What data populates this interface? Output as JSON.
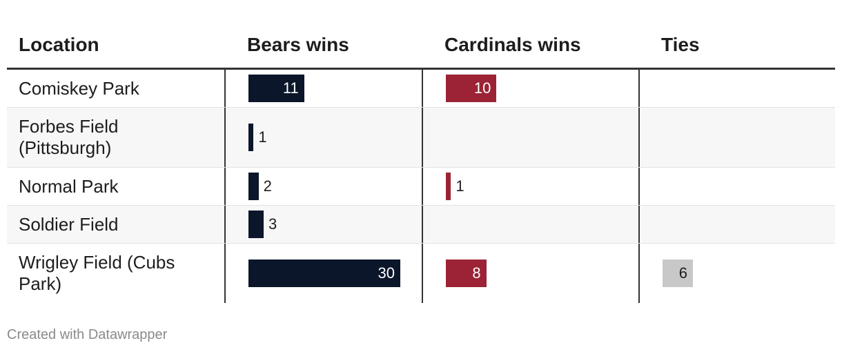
{
  "table": {
    "headers": [
      "Location",
      "Bears wins",
      "Cardinals wins",
      "Ties"
    ],
    "rows": [
      {
        "location": "Comiskey Park",
        "bears": 11,
        "cardinals": 10,
        "ties": null
      },
      {
        "location": "Forbes Field (Pittsburgh)",
        "bears": 1,
        "cardinals": null,
        "ties": null
      },
      {
        "location": "Normal Park",
        "bears": 2,
        "cardinals": 1,
        "ties": null
      },
      {
        "location": "Soldier Field",
        "bears": 3,
        "cardinals": null,
        "ties": null
      },
      {
        "location": "Wrigley Field (Cubs Park)",
        "bears": 30,
        "cardinals": 8,
        "ties": 6
      }
    ]
  },
  "chart_data": {
    "type": "table",
    "columns": [
      "Location",
      "Bears wins",
      "Cardinals wins",
      "Ties"
    ],
    "categories": [
      "Comiskey Park",
      "Forbes Field (Pittsburgh)",
      "Normal Park",
      "Soldier Field",
      "Wrigley Field (Cubs Park)"
    ],
    "series": [
      {
        "name": "Bears wins",
        "values": [
          11,
          1,
          2,
          3,
          30
        ]
      },
      {
        "name": "Cardinals wins",
        "values": [
          10,
          null,
          1,
          null,
          8
        ]
      },
      {
        "name": "Ties",
        "values": [
          null,
          null,
          null,
          null,
          6
        ]
      }
    ]
  },
  "colors": {
    "bears": "#0b162a",
    "cardinals": "#9b2335",
    "ties": "#c8c8c8"
  },
  "footer": "Created with Datawrapper"
}
